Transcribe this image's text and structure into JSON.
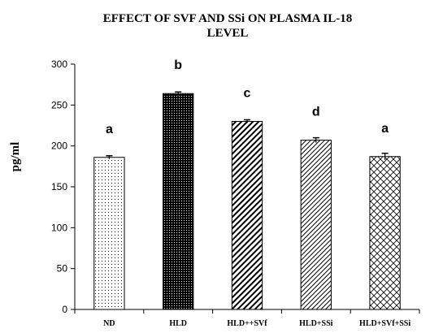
{
  "chart_data": {
    "type": "bar",
    "title_line1": "EFFECT OF SVF AND SSi ON PLASMA IL-18",
    "title_line2": "LEVEL",
    "ylabel": "pg/ml",
    "xlabel": "",
    "ylim": [
      0,
      300
    ],
    "yticks": [
      "0",
      "50",
      "100",
      "150",
      "200",
      "250",
      "300"
    ],
    "grid": false,
    "categories": [
      "ND",
      "HLD",
      "HLD++SVf",
      "HLD+SSi",
      "HLD+SVf+SSi"
    ],
    "values": [
      186,
      264,
      230,
      207,
      187
    ],
    "errors": [
      2,
      2,
      2,
      3,
      4
    ],
    "significance_labels": [
      "a",
      "b",
      "c",
      "d",
      "a"
    ],
    "patterns": [
      "dots-light",
      "dots-dense",
      "diag-wide",
      "diag-narrow",
      "crosshatch"
    ],
    "bar_edge_color": "#000000",
    "bar_fill_color": "#ffffff"
  }
}
